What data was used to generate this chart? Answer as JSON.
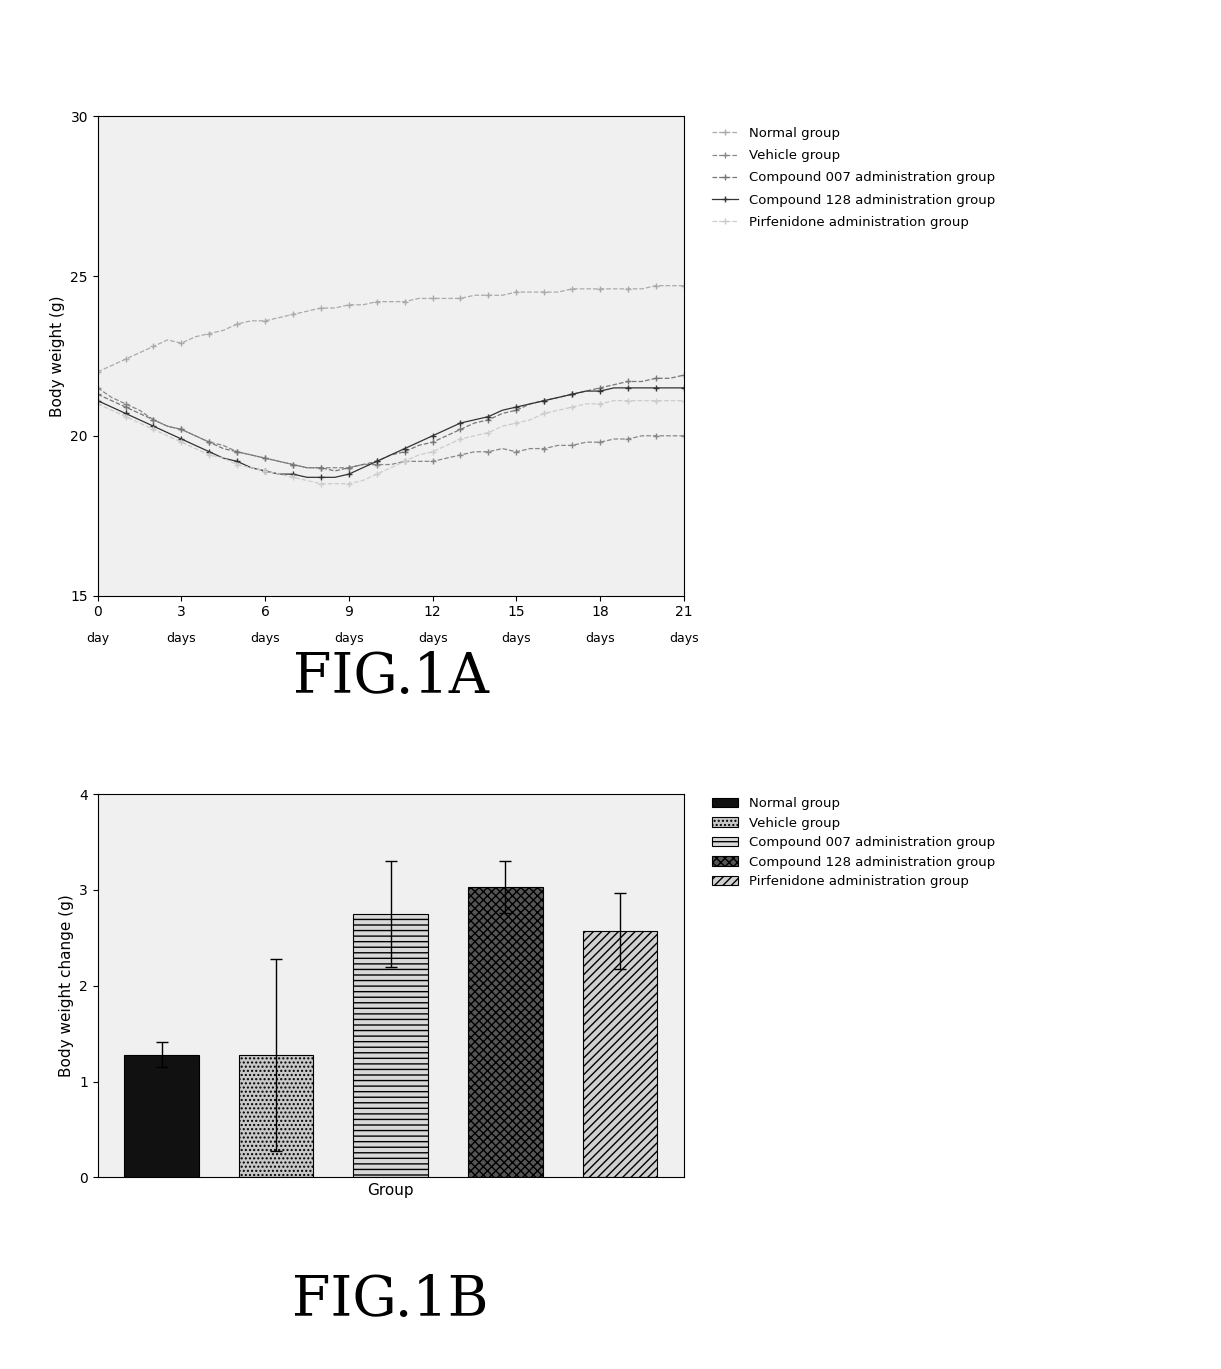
{
  "fig1a": {
    "ylabel": "Body weight (g)",
    "xlim": [
      0,
      21
    ],
    "ylim": [
      15,
      30
    ],
    "yticks": [
      15,
      20,
      25,
      30
    ],
    "xticks": [
      0,
      3,
      6,
      9,
      12,
      15,
      18,
      21
    ],
    "xtick_numbers": [
      "0",
      "3",
      "6",
      "9",
      "12",
      "15",
      "18",
      "21"
    ],
    "xtick_units": [
      "day",
      "days",
      "days",
      "days",
      "days",
      "days",
      "days",
      "days"
    ],
    "series": {
      "Normal group": {
        "x": [
          0,
          0.5,
          1,
          1.5,
          2,
          2.5,
          3,
          3.5,
          4,
          4.5,
          5,
          5.5,
          6,
          6.5,
          7,
          7.5,
          8,
          8.5,
          9,
          9.5,
          10,
          10.5,
          11,
          11.5,
          12,
          12.5,
          13,
          13.5,
          14,
          14.5,
          15,
          15.5,
          16,
          16.5,
          17,
          17.5,
          18,
          18.5,
          19,
          19.5,
          20,
          20.5,
          21
        ],
        "y": [
          22.0,
          22.2,
          22.4,
          22.6,
          22.8,
          23.0,
          22.9,
          23.1,
          23.2,
          23.3,
          23.5,
          23.6,
          23.6,
          23.7,
          23.8,
          23.9,
          24.0,
          24.0,
          24.1,
          24.1,
          24.2,
          24.2,
          24.2,
          24.3,
          24.3,
          24.3,
          24.3,
          24.4,
          24.4,
          24.4,
          24.5,
          24.5,
          24.5,
          24.5,
          24.6,
          24.6,
          24.6,
          24.6,
          24.6,
          24.6,
          24.7,
          24.7,
          24.7
        ],
        "color": "#999999",
        "marker": "*",
        "linestyle": "--",
        "markersize": 3
      },
      "Vehicle group": {
        "x": [
          0,
          0.5,
          1,
          1.5,
          2,
          2.5,
          3,
          3.5,
          4,
          4.5,
          5,
          5.5,
          6,
          6.5,
          7,
          7.5,
          8,
          8.5,
          9,
          9.5,
          10,
          10.5,
          11,
          11.5,
          12,
          12.5,
          13,
          13.5,
          14,
          14.5,
          15,
          15.5,
          16,
          16.5,
          17,
          17.5,
          18,
          18.5,
          19,
          19.5,
          20,
          20.5,
          21
        ],
        "y": [
          21.5,
          21.2,
          21.0,
          20.8,
          20.5,
          20.3,
          20.2,
          20.0,
          19.8,
          19.7,
          19.5,
          19.4,
          19.3,
          19.2,
          19.1,
          19.0,
          19.0,
          19.0,
          19.0,
          19.1,
          19.1,
          19.1,
          19.2,
          19.2,
          19.2,
          19.3,
          19.4,
          19.5,
          19.5,
          19.6,
          19.5,
          19.6,
          19.6,
          19.7,
          19.7,
          19.8,
          19.8,
          19.9,
          19.9,
          20.0,
          20.0,
          20.0,
          20.0
        ],
        "color": "#888888",
        "marker": "*",
        "linestyle": "--",
        "markersize": 3
      },
      "Compound 007 administration group": {
        "x": [
          0,
          0.5,
          1,
          1.5,
          2,
          2.5,
          3,
          3.5,
          4,
          4.5,
          5,
          5.5,
          6,
          6.5,
          7,
          7.5,
          8,
          8.5,
          9,
          9.5,
          10,
          10.5,
          11,
          11.5,
          12,
          12.5,
          13,
          13.5,
          14,
          14.5,
          15,
          15.5,
          16,
          16.5,
          17,
          17.5,
          18,
          18.5,
          19,
          19.5,
          20,
          20.5,
          21
        ],
        "y": [
          21.3,
          21.1,
          20.9,
          20.7,
          20.5,
          20.3,
          20.2,
          20.0,
          19.8,
          19.6,
          19.5,
          19.4,
          19.3,
          19.2,
          19.1,
          19.0,
          19.0,
          18.9,
          19.0,
          19.1,
          19.2,
          19.4,
          19.5,
          19.7,
          19.8,
          20.0,
          20.2,
          20.4,
          20.5,
          20.7,
          20.8,
          21.0,
          21.1,
          21.2,
          21.3,
          21.4,
          21.5,
          21.6,
          21.7,
          21.7,
          21.8,
          21.8,
          21.9
        ],
        "color": "#777777",
        "marker": "+",
        "linestyle": "--",
        "markersize": 3
      },
      "Compound 128 administration group": {
        "x": [
          0,
          0.5,
          1,
          1.5,
          2,
          2.5,
          3,
          3.5,
          4,
          4.5,
          5,
          5.5,
          6,
          6.5,
          7,
          7.5,
          8,
          8.5,
          9,
          9.5,
          10,
          10.5,
          11,
          11.5,
          12,
          12.5,
          13,
          13.5,
          14,
          14.5,
          15,
          15.5,
          16,
          16.5,
          17,
          17.5,
          18,
          18.5,
          19,
          19.5,
          20,
          20.5,
          21
        ],
        "y": [
          21.1,
          20.9,
          20.7,
          20.5,
          20.3,
          20.1,
          19.9,
          19.7,
          19.5,
          19.3,
          19.2,
          19.0,
          18.9,
          18.8,
          18.8,
          18.7,
          18.7,
          18.7,
          18.8,
          19.0,
          19.2,
          19.4,
          19.6,
          19.8,
          20.0,
          20.2,
          20.4,
          20.5,
          20.6,
          20.8,
          20.9,
          21.0,
          21.1,
          21.2,
          21.3,
          21.4,
          21.4,
          21.5,
          21.5,
          21.5,
          21.5,
          21.5,
          21.5
        ],
        "color": "#444444",
        "marker": "+",
        "linestyle": "-",
        "markersize": 3
      },
      "Pirfenidone administration group": {
        "x": [
          0,
          0.5,
          1,
          1.5,
          2,
          2.5,
          3,
          3.5,
          4,
          4.5,
          5,
          5.5,
          6,
          6.5,
          7,
          7.5,
          8,
          8.5,
          9,
          9.5,
          10,
          10.5,
          11,
          11.5,
          12,
          12.5,
          13,
          13.5,
          14,
          14.5,
          15,
          15.5,
          16,
          16.5,
          17,
          17.5,
          18,
          18.5,
          19,
          19.5,
          20,
          20.5,
          21
        ],
        "y": [
          21.0,
          20.8,
          20.6,
          20.4,
          20.2,
          20.0,
          19.8,
          19.6,
          19.4,
          19.3,
          19.1,
          19.0,
          18.9,
          18.8,
          18.7,
          18.6,
          18.5,
          18.5,
          18.5,
          18.6,
          18.8,
          19.0,
          19.2,
          19.4,
          19.5,
          19.7,
          19.9,
          20.0,
          20.1,
          20.3,
          20.4,
          20.5,
          20.7,
          20.8,
          20.9,
          21.0,
          21.0,
          21.1,
          21.1,
          21.1,
          21.1,
          21.1,
          21.1
        ],
        "color": "#bbbbbb",
        "marker": "+",
        "linestyle": "--",
        "markersize": 3
      }
    }
  },
  "fig1b": {
    "xlabel": "Group",
    "ylabel": "Body weight change (g)",
    "ylim": [
      0,
      4
    ],
    "yticks": [
      0,
      1,
      2,
      3,
      4
    ],
    "values": [
      1.28,
      1.28,
      2.75,
      3.03,
      2.57
    ],
    "errors": [
      0.13,
      1.0,
      0.55,
      0.27,
      0.4
    ],
    "bar_groups": [
      "Normal group",
      "Vehicle group",
      "Compound 007 administration group",
      "Compound 128 administration group",
      "Pirfenidone administration group"
    ],
    "legend_labels": [
      "Normal group",
      "Vehicle group",
      "Compound 007 administration group",
      "Compound 128 administration group",
      "Pirfenidone administration group"
    ]
  },
  "fig1a_label": "FIG.1A",
  "fig1b_label": "FIG.1B",
  "background_color": "#f0f0f0",
  "font_color": "#000000"
}
